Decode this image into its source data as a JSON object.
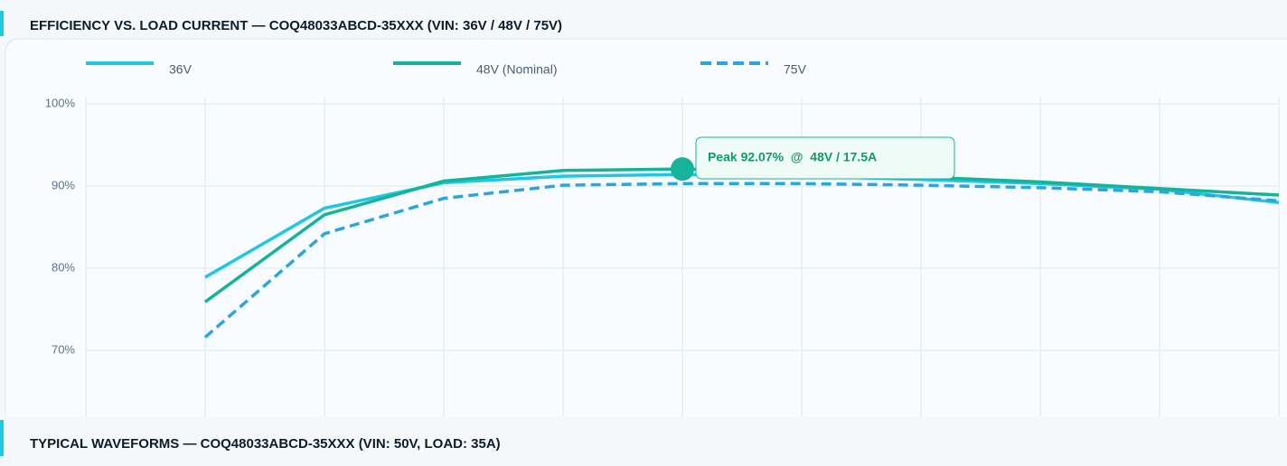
{
  "chart_data": {
    "type": "line",
    "title": "EFFICIENCY VS. LOAD CURRENT  —  COQ48033ABCD-35XXX  (VIN: 36V / 48V / 75V)",
    "x": [
      3.5,
      7,
      10.5,
      14,
      17.5,
      21,
      24.5,
      28,
      31.5,
      35
    ],
    "xlim": [
      0,
      35
    ],
    "xticks": [
      0,
      3.5,
      7,
      10.5,
      14,
      17.5,
      21,
      24.5,
      28,
      31.5,
      35
    ],
    "ylim": [
      60,
      100
    ],
    "yticks": [
      {
        "value": 70,
        "label": "70%"
      },
      {
        "value": 80,
        "label": "80%"
      },
      {
        "value": 90,
        "label": "90%"
      },
      {
        "value": 100,
        "label": "100%"
      }
    ],
    "grid": true,
    "series": [
      {
        "name": "36V",
        "color": "#1ec8e2",
        "dash": false,
        "values": [
          78.9,
          87.3,
          90.4,
          91.2,
          91.4,
          91.2,
          90.8,
          90.3,
          89.6,
          88.0
        ]
      },
      {
        "name": "48V (Nominal)",
        "color": "#14b39a",
        "dash": false,
        "values": [
          75.9,
          86.5,
          90.6,
          91.9,
          92.07,
          91.7,
          91.1,
          90.5,
          89.7,
          88.9
        ]
      },
      {
        "name": "75V",
        "color": "#2ba6dc",
        "dash": true,
        "values": [
          71.6,
          84.2,
          88.5,
          90.1,
          90.3,
          90.3,
          90.1,
          89.8,
          89.3,
          88.2
        ]
      }
    ],
    "annotation": {
      "text": "Peak 92.07%  @  48V / 17.5A",
      "x": 17.5,
      "y": 92.07,
      "color": "#14b39a"
    }
  },
  "second_header": {
    "title": "TYPICAL WAVEFORMS  —  COQ48033ABCD-35XXX  (VIN: 50V, LOAD: 35A)"
  }
}
